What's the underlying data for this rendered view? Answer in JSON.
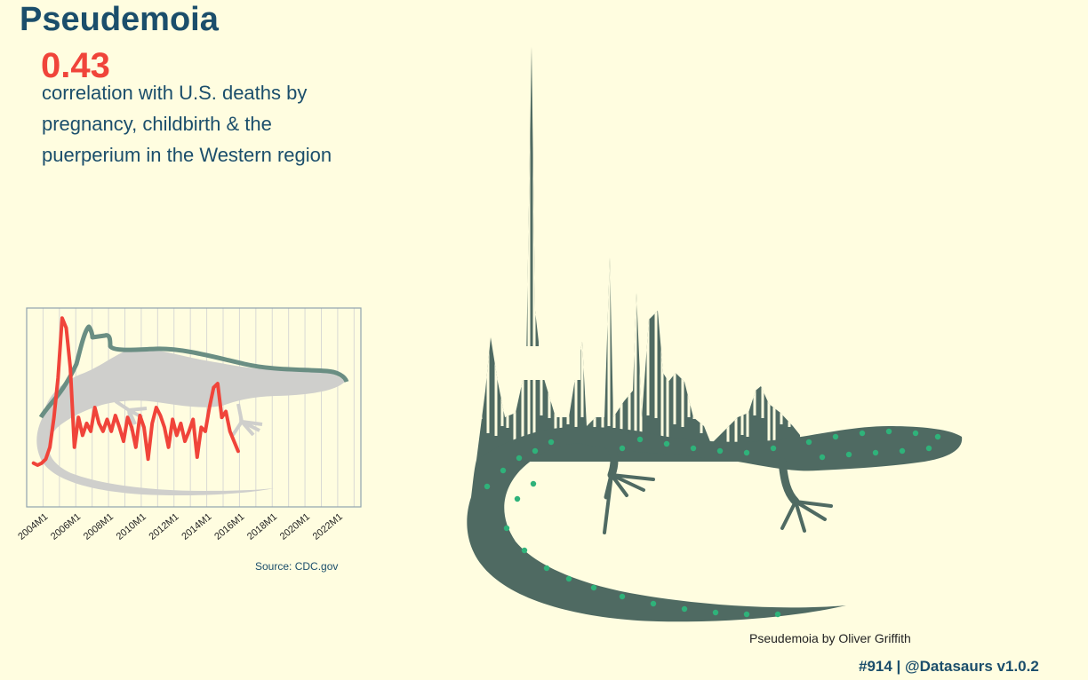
{
  "header": {
    "title": "Pseudemoia",
    "correlation_value": "0.43",
    "correlation_text": "correlation with U.S. deaths by pregnancy, childbirth & the puerperium in the Western region"
  },
  "chart_data": {
    "type": "line",
    "title": "",
    "xlabel": "",
    "ylabel": "",
    "tick_labels": [
      "2004M1",
      "2006M1",
      "2008M1",
      "2010M1",
      "2012M1",
      "2014M1",
      "2016M1",
      "2018M1",
      "2020M1",
      "2022M1"
    ],
    "x_range": [
      "2003M1",
      "2023M6"
    ],
    "grid": "vertical",
    "series": [
      {
        "x": [
          "2003M6",
          "2003M9",
          "2003M12",
          "2004M3",
          "2004M6",
          "2004M9",
          "2004M12",
          "2005M3",
          "2005M6",
          "2005M9",
          "2005M12",
          "2006M3",
          "2006M6",
          "2006M9",
          "2006M12",
          "2007M3",
          "2007M6",
          "2007M9",
          "2007M12",
          "2008M3",
          "2008M6",
          "2008M9",
          "2008M12",
          "2009M3",
          "2009M6",
          "2009M9",
          "2009M12",
          "2010M3",
          "2010M6",
          "2010M9",
          "2010M12",
          "2011M3",
          "2011M6",
          "2011M9",
          "2011M12",
          "2012M3",
          "2012M6",
          "2012M9",
          "2012M12",
          "2013M3",
          "2013M6",
          "2013M9",
          "2013M12",
          "2014M3",
          "2014M6",
          "2014M9",
          "2014M12",
          "2015M3",
          "2015M6",
          "2015M9",
          "2015M12"
        ],
        "values": [
          0.22,
          0.21,
          0.22,
          0.24,
          0.3,
          0.45,
          0.65,
          0.95,
          0.9,
          0.7,
          0.3,
          0.45,
          0.36,
          0.42,
          0.38,
          0.5,
          0.42,
          0.38,
          0.44,
          0.38,
          0.46,
          0.4,
          0.33,
          0.45,
          0.4,
          0.3,
          0.46,
          0.4,
          0.24,
          0.42,
          0.5,
          0.46,
          0.4,
          0.3,
          0.44,
          0.36,
          0.42,
          0.33,
          0.38,
          0.44,
          0.25,
          0.4,
          0.38,
          0.5,
          0.6,
          0.62,
          0.45,
          0.48,
          0.38,
          0.33,
          0.28
        ]
      }
    ],
    "colors": {
      "line": "#F0443A",
      "frame": "#8FA3AE",
      "grid": "#D9D9D4",
      "inset_lizard": "#CFCFCC",
      "inset_lizard_outline": "#6A8E83",
      "main_lizard": "#4F6A62",
      "main_spots": "#2FB27A"
    }
  },
  "footer": {
    "source": "Source: CDC.gov",
    "credit": "Pseudemoia by Oliver Griffith",
    "handle": "#914 | @Datasaurs v1.0.2"
  }
}
